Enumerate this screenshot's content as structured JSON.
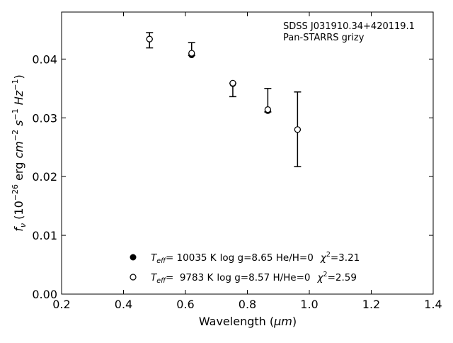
{
  "chart_data": {
    "type": "scatter",
    "annotation": {
      "line1": "SDSS J031910.34+420119.1",
      "line2": "Pan-STARRS grizy"
    },
    "xlabel": {
      "prefix": "Wavelength (",
      "unit": "μm",
      "suffix": ")"
    },
    "ylabel": "f_ν (10^-26 erg cm^-2 s^-1 Hz^-1)",
    "xlim": [
      0.2,
      1.4
    ],
    "ylim": [
      0.0,
      0.048
    ],
    "xticks": [
      0.2,
      0.4,
      0.6,
      0.8,
      1.0,
      1.2,
      1.4
    ],
    "xtick_labels": [
      "0.2",
      "0.4",
      "0.6",
      "0.8",
      "1.0",
      "1.2",
      "1.4"
    ],
    "yticks": [
      0.0,
      0.01,
      0.02,
      0.03,
      0.04
    ],
    "ytick_labels": [
      "0.00",
      "0.01",
      "0.02",
      "0.03",
      "0.04"
    ],
    "tick_direction": "in",
    "grid": false,
    "legend_position": "bottom-center",
    "observed": {
      "x": [
        0.484,
        0.62,
        0.753,
        0.866,
        0.962
      ],
      "y": [
        0.0434,
        0.0409,
        0.0359,
        0.0313,
        0.028
      ],
      "yerr_low": [
        0.0419,
        0.0406,
        0.0336,
        0.031,
        0.0217
      ],
      "yerr_high": [
        0.0445,
        0.0428,
        0.0359,
        0.035,
        0.0344
      ]
    },
    "series": [
      {
        "marker": "filled",
        "x": [
          0.484,
          0.62,
          0.753,
          0.866,
          0.962
        ],
        "y": [
          0.0434,
          0.0407,
          0.0358,
          0.0312,
          0.028
        ],
        "legend": {
          "teff_value": "= 10035 K",
          "params": "log g=8.65  He/H=0",
          "chi2_value": "=3.21"
        }
      },
      {
        "marker": "open",
        "x": [
          0.484,
          0.62,
          0.753,
          0.866,
          0.962
        ],
        "y": [
          0.0434,
          0.041,
          0.0359,
          0.0314,
          0.028
        ],
        "legend": {
          "teff_value": "=  9783 K",
          "params": "log g=8.57  H/He=0",
          "chi2_value": "=2.59"
        }
      }
    ],
    "colors": {
      "marker": "#000000",
      "axes": "#000000",
      "background": "#ffffff"
    }
  }
}
